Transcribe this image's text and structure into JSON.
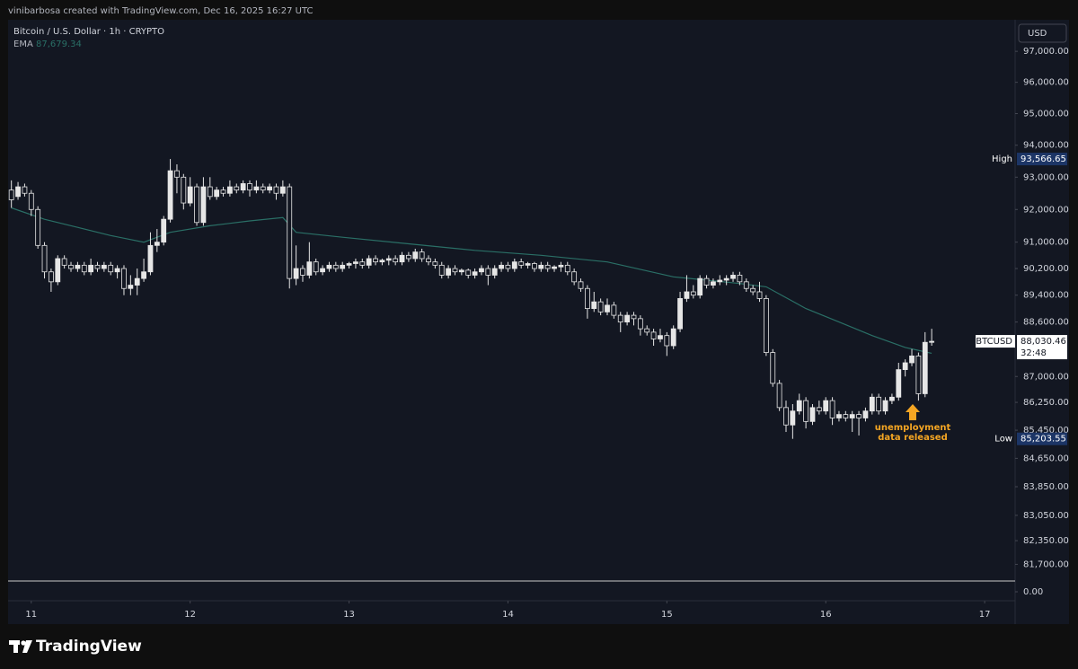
{
  "header": {
    "credit": "vinibarbosa created with TradingView.com, Dec 16, 2025 16:27 UTC"
  },
  "footer": {
    "brand": "TradingView"
  },
  "chart_data": {
    "type": "candlestick",
    "title": "Bitcoin / U.S. Dollar · 1h · CRYPTO",
    "currency": "USD",
    "yscale": "log",
    "grid": false,
    "candle_color": "#e6e6e6",
    "xlim": [
      -3.5,
      148.6
    ],
    "xticks": [
      {
        "value": 0,
        "label": "11"
      },
      {
        "value": 24,
        "label": "12"
      },
      {
        "value": 48,
        "label": "13"
      },
      {
        "value": 72,
        "label": "14"
      },
      {
        "value": 96,
        "label": "15"
      },
      {
        "value": 120,
        "label": "16"
      },
      {
        "value": 144,
        "label": "17"
      }
    ],
    "ylim": [
      81270,
      98030
    ],
    "yticks": [
      {
        "value": 97000,
        "label": "97,000.00"
      },
      {
        "value": 96000,
        "label": "96,000.00"
      },
      {
        "value": 95000,
        "label": "95,000.00"
      },
      {
        "value": 94000,
        "label": "94,000.00"
      },
      {
        "value": 93000,
        "label": "93,000.00"
      },
      {
        "value": 92000,
        "label": "92,000.00"
      },
      {
        "value": 91000,
        "label": "91,000.00"
      },
      {
        "value": 90200,
        "label": "90,200.00"
      },
      {
        "value": 89400,
        "label": "89,400.00"
      },
      {
        "value": 88600,
        "label": "88,600.00"
      },
      {
        "value": 87000,
        "label": "87,000.00"
      },
      {
        "value": 86250,
        "label": "86,250.00"
      },
      {
        "value": 85450,
        "label": "85,450.00"
      },
      {
        "value": 84650,
        "label": "84,650.00"
      },
      {
        "value": 83850,
        "label": "83,850.00"
      },
      {
        "value": 83050,
        "label": "83,050.00"
      },
      {
        "value": 82350,
        "label": "82,350.00"
      },
      {
        "value": 81700,
        "label": "81,700.00"
      }
    ],
    "lower_pane_yticks": [
      {
        "value": 0,
        "label": "0.00"
      }
    ],
    "x": [
      -3,
      -2,
      -1,
      0,
      1,
      2,
      3,
      4,
      5,
      6,
      7,
      8,
      9,
      10,
      11,
      12,
      13,
      14,
      15,
      16,
      17,
      18,
      19,
      20,
      21,
      22,
      23,
      24,
      25,
      26,
      27,
      28,
      29,
      30,
      31,
      32,
      33,
      34,
      35,
      36,
      37,
      38,
      39,
      40,
      41,
      42,
      43,
      44,
      45,
      46,
      47,
      48,
      49,
      50,
      51,
      52,
      53,
      54,
      55,
      56,
      57,
      58,
      59,
      60,
      61,
      62,
      63,
      64,
      65,
      66,
      67,
      68,
      69,
      70,
      71,
      72,
      73,
      74,
      75,
      76,
      77,
      78,
      79,
      80,
      81,
      82,
      83,
      84,
      85,
      86,
      87,
      88,
      89,
      90,
      91,
      92,
      93,
      94,
      95,
      96,
      97,
      98,
      99,
      100,
      101,
      102,
      103,
      104,
      105,
      106,
      107,
      108,
      109,
      110,
      111,
      112,
      113,
      114,
      115,
      116,
      117,
      118,
      119,
      120,
      121,
      122,
      123,
      124,
      125,
      126,
      127,
      128,
      129,
      130,
      131,
      132,
      133,
      134,
      135,
      136
    ],
    "open": [
      92600,
      92400,
      92700,
      92500,
      92000,
      90900,
      90100,
      89800,
      90500,
      90300,
      90200,
      90300,
      90100,
      90300,
      90200,
      90300,
      90100,
      90200,
      89600,
      89700,
      89900,
      90100,
      90900,
      91000,
      91700,
      93200,
      93000,
      92200,
      92700,
      91600,
      92700,
      92400,
      92600,
      92500,
      92700,
      92600,
      92800,
      92600,
      92700,
      92600,
      92700,
      92500,
      92700,
      89900,
      90200,
      90000,
      90400,
      90100,
      90200,
      90300,
      90200,
      90300,
      90350,
      90400,
      90300,
      90500,
      90400,
      90450,
      90500,
      90400,
      90600,
      90500,
      90700,
      90500,
      90400,
      90300,
      90000,
      90200,
      90100,
      90150,
      90000,
      90100,
      90200,
      90000,
      90200,
      90300,
      90200,
      90400,
      90300,
      90350,
      90200,
      90300,
      90200,
      90250,
      90300,
      90100,
      89800,
      89600,
      89000,
      89200,
      88900,
      89100,
      88800,
      88600,
      88800,
      88700,
      88400,
      88300,
      88100,
      88200,
      87900,
      88400,
      89300,
      89500,
      89400,
      89900,
      89700,
      89800,
      89850,
      89900,
      90000,
      89800,
      89600,
      89500,
      89300,
      87700,
      86800,
      86100,
      85600,
      86000,
      86300,
      85700,
      86100,
      86000,
      86300,
      85800,
      85900,
      85800,
      85900,
      85800,
      86000,
      86400,
      86000,
      86300,
      86400,
      87200,
      87400,
      87600,
      86500,
      88000
    ],
    "high": [
      92900,
      92850,
      92800,
      92600,
      92100,
      91000,
      90200,
      90600,
      90600,
      90400,
      90400,
      90400,
      90500,
      90400,
      90400,
      90400,
      90300,
      90300,
      90000,
      90200,
      90500,
      91300,
      91400,
      91800,
      93566.65,
      93400,
      93100,
      93000,
      92800,
      93000,
      93000,
      92700,
      92700,
      92900,
      92800,
      92900,
      92900,
      92900,
      92800,
      92800,
      92800,
      92900,
      92800,
      90900,
      90300,
      91000,
      90500,
      90300,
      90400,
      90400,
      90400,
      90400,
      90500,
      90500,
      90600,
      90600,
      90500,
      90600,
      90600,
      90700,
      90700,
      90800,
      90800,
      90600,
      90500,
      90400,
      90300,
      90300,
      90200,
      90200,
      90200,
      90300,
      90300,
      90300,
      90400,
      90400,
      90500,
      90500,
      90400,
      90400,
      90400,
      90400,
      90300,
      90400,
      90400,
      90200,
      89900,
      89700,
      89500,
      89300,
      89300,
      89200,
      88900,
      88900,
      88900,
      88800,
      88500,
      88400,
      88400,
      88300,
      88500,
      89500,
      90000,
      89700,
      90000,
      90000,
      89900,
      90000,
      90000,
      90100,
      90100,
      89900,
      89700,
      89800,
      89400,
      87800,
      86900,
      86300,
      86200,
      86500,
      86400,
      86200,
      86300,
      86400,
      86400,
      86000,
      86000,
      86000,
      86000,
      86100,
      86500,
      86500,
      86400,
      86500,
      87400,
      87500,
      87800,
      87700,
      88300,
      88400
    ],
    "low": [
      92050,
      92300,
      92400,
      91800,
      90800,
      89900,
      89500,
      89700,
      90200,
      90100,
      90100,
      90000,
      90000,
      90100,
      90100,
      90000,
      89900,
      89400,
      89400,
      89400,
      89800,
      90000,
      90700,
      90900,
      91600,
      92500,
      92000,
      92100,
      91500,
      91500,
      92300,
      92300,
      92400,
      92400,
      92500,
      92500,
      92400,
      92500,
      92500,
      92500,
      92300,
      92400,
      89600,
      89700,
      89800,
      89900,
      90000,
      90000,
      90100,
      90100,
      90100,
      90200,
      90200,
      90200,
      90200,
      90300,
      90300,
      90300,
      90300,
      90300,
      90400,
      90400,
      90400,
      90300,
      90200,
      89900,
      89900,
      90000,
      90000,
      89900,
      89900,
      90000,
      89700,
      89900,
      90100,
      90100,
      90100,
      90200,
      90200,
      90100,
      90100,
      90100,
      90100,
      90100,
      90000,
      89700,
      89500,
      88700,
      88900,
      88800,
      88800,
      88700,
      88300,
      88500,
      88500,
      88200,
      88200,
      87900,
      88000,
      87600,
      87800,
      88300,
      89200,
      89300,
      89300,
      89600,
      89600,
      89700,
      89700,
      89800,
      89700,
      89500,
      89400,
      89200,
      87600,
      86700,
      86000,
      85400,
      85203.55,
      85900,
      85500,
      85600,
      85900,
      85900,
      85600,
      85700,
      85700,
      85400,
      85300,
      85700,
      85900,
      85900,
      85900,
      86200,
      86300,
      87000,
      87300,
      86300,
      86400,
      87900
    ],
    "close": [
      92300,
      92700,
      92500,
      92000,
      90900,
      90100,
      89800,
      90500,
      90300,
      90200,
      90300,
      90100,
      90300,
      90200,
      90300,
      90100,
      90200,
      89600,
      89700,
      89900,
      90100,
      90900,
      91000,
      91700,
      93200,
      93000,
      92200,
      92700,
      91600,
      92700,
      92400,
      92600,
      92500,
      92700,
      92600,
      92800,
      92600,
      92700,
      92600,
      92700,
      92500,
      92700,
      89900,
      90200,
      90000,
      90400,
      90100,
      90200,
      90300,
      90200,
      90300,
      90350,
      90400,
      90300,
      90500,
      90400,
      90450,
      90500,
      90400,
      90600,
      90500,
      90700,
      90500,
      90400,
      90300,
      90000,
      90200,
      90100,
      90150,
      90000,
      90100,
      90200,
      90000,
      90200,
      90300,
      90200,
      90400,
      90300,
      90350,
      90200,
      90300,
      90200,
      90250,
      90300,
      90100,
      89800,
      89600,
      89000,
      89200,
      88900,
      89100,
      88800,
      88600,
      88800,
      88700,
      88400,
      88300,
      88100,
      88200,
      87900,
      88400,
      89300,
      89500,
      89400,
      89900,
      89700,
      89800,
      89850,
      89900,
      90000,
      89800,
      89600,
      89500,
      89300,
      87700,
      86800,
      86100,
      85600,
      86000,
      86300,
      85700,
      86100,
      86000,
      86300,
      85800,
      85900,
      85800,
      85900,
      85800,
      86000,
      86400,
      86000,
      86300,
      86400,
      87200,
      87400,
      87600,
      86500,
      88000,
      88030.46
    ],
    "ema": {
      "name": "EMA",
      "color": "#2a6f66",
      "legend_value": {
        "value": 87679.34,
        "label": "87,679.34"
      },
      "x": [
        -3,
        2,
        7,
        12,
        17,
        21,
        27,
        33,
        38,
        40,
        47,
        57,
        67,
        77,
        87,
        97,
        107,
        111,
        117,
        122,
        127,
        132,
        136
      ],
      "values": [
        92050,
        91700,
        91450,
        91200,
        91000,
        91300,
        91500,
        91650,
        91750,
        91300,
        91150,
        90950,
        90750,
        90600,
        90400,
        89950,
        89750,
        89650,
        89000,
        88600,
        88200,
        87850,
        87679.34
      ]
    },
    "high_marker": {
      "name": "High",
      "value": 93566.65,
      "label": "93,566.65",
      "color": "#1c3566"
    },
    "low_marker": {
      "name": "Low",
      "value": 85203.55,
      "label": "85,203.55",
      "color": "#1c3566"
    },
    "last_price": {
      "name": "BTCUSD",
      "value": 88030.46,
      "label": "88,030.46",
      "countdown": "32:48"
    },
    "annotation": {
      "lines": [
        "unemployment",
        "data released"
      ],
      "color": "#f5a623"
    }
  }
}
